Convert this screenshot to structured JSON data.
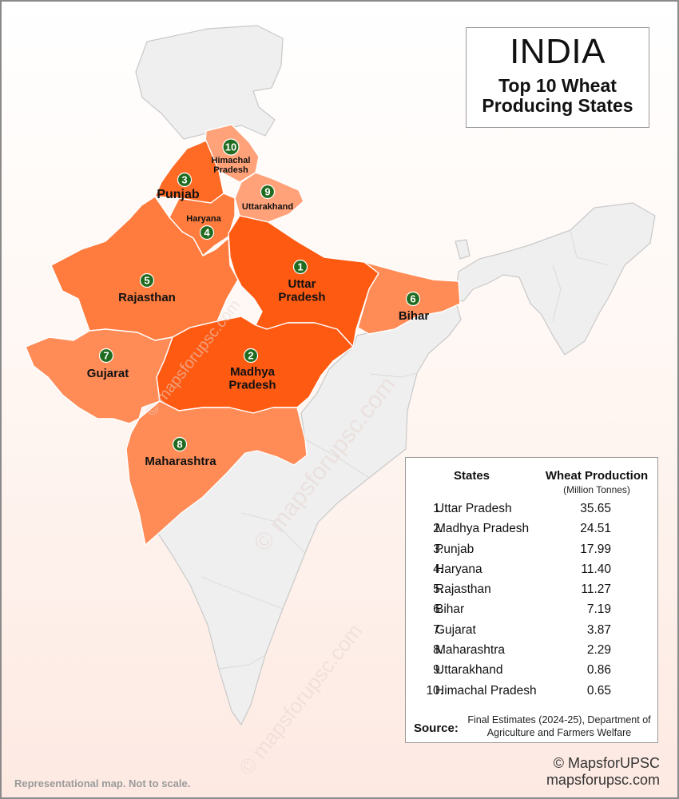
{
  "title": {
    "main": "INDIA",
    "subtitle": "Top 10 Wheat Producing States"
  },
  "map_labels": [
    {
      "rank": "1",
      "name": "Uttar Pradesh"
    },
    {
      "rank": "2",
      "name": "Madhya Pradesh"
    },
    {
      "rank": "3",
      "name": "Punjab"
    },
    {
      "rank": "4",
      "name": "Haryana"
    },
    {
      "rank": "5",
      "name": "Rajasthan"
    },
    {
      "rank": "6",
      "name": "Bihar"
    },
    {
      "rank": "7",
      "name": "Gujarat"
    },
    {
      "rank": "8",
      "name": "Maharashtra"
    },
    {
      "rank": "9",
      "name": "Uttarakhand"
    },
    {
      "rank": "10",
      "name": "Himachal Pradesh"
    }
  ],
  "table": {
    "header_states": "States",
    "header_production": "Wheat Production",
    "header_unit": "(Million Tonnes)",
    "rows": [
      {
        "num": "1.",
        "state": "Uttar Pradesh",
        "value": "35.65"
      },
      {
        "num": "2.",
        "state": "Madhya Pradesh",
        "value": "24.51"
      },
      {
        "num": "3.",
        "state": "Punjab",
        "value": "17.99"
      },
      {
        "num": "4.",
        "state": "Haryana",
        "value": "11.40"
      },
      {
        "num": "5.",
        "state": "Rajasthan",
        "value": "11.27"
      },
      {
        "num": "6.",
        "state": "Bihar",
        "value": "7.19"
      },
      {
        "num": "7.",
        "state": "Gujarat",
        "value": "3.87"
      },
      {
        "num": "8.",
        "state": "Maharashtra",
        "value": "2.29"
      },
      {
        "num": "9.",
        "state": "Uttarakhand",
        "value": "0.86"
      },
      {
        "num": "10.",
        "state": "Himachal Pradesh",
        "value": "0.65"
      }
    ],
    "source_label": "Source:",
    "source_text": "Final Estimates (2024-25), Department of Agriculture and Farmers Welfare"
  },
  "footer": {
    "disclaimer": "Representational map. Not to scale.",
    "copyright": "© MapsforUPSC",
    "website": "mapsforupsc.com"
  },
  "watermark": "© mapsforupsc.com",
  "colors": {
    "rank_1_2": "#fe5a12",
    "rank_3": "#ff6a25",
    "rank_4_5": "#ff7c3e",
    "rank_6_7_8": "#ff8c57",
    "rank_9_10": "#ffa27a",
    "other_states": "#efefef",
    "badge": "#1f6b1f"
  }
}
